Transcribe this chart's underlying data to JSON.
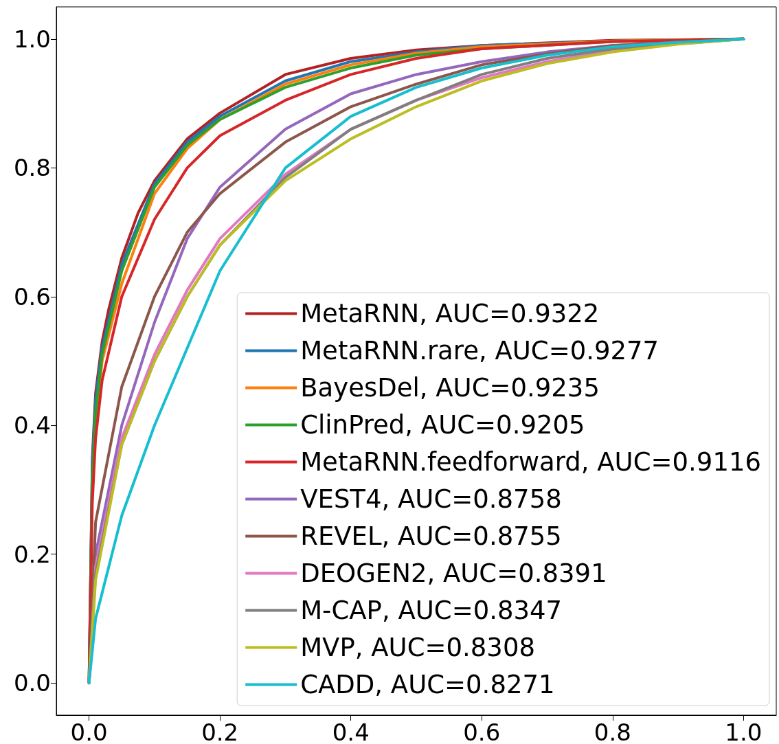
{
  "chart_data": {
    "type": "line",
    "xlim": [
      -0.05,
      1.05
    ],
    "ylim": [
      -0.05,
      1.05
    ],
    "xticks": [
      {
        "value": 0,
        "label": "0.0"
      },
      {
        "value": 0.2,
        "label": "0.2"
      },
      {
        "value": 0.4,
        "label": "0.4"
      },
      {
        "value": 0.6,
        "label": "0.6"
      },
      {
        "value": 0.8,
        "label": "0.8"
      },
      {
        "value": 1,
        "label": "1.0"
      }
    ],
    "yticks": [
      {
        "value": 0,
        "label": "0.0"
      },
      {
        "value": 0.2,
        "label": "0.2"
      },
      {
        "value": 0.4,
        "label": "0.4"
      },
      {
        "value": 0.6,
        "label": "0.6"
      },
      {
        "value": 0.8,
        "label": "0.8"
      },
      {
        "value": 1,
        "label": "1.0"
      }
    ],
    "grid": false,
    "legend": "bottom right",
    "marker": "none",
    "line_style": "solid",
    "series": [
      {
        "name": "MetaRNN, AUC=0.9322",
        "color": "#b22222",
        "x": [
          0,
          0.005,
          0.01,
          0.02,
          0.03,
          0.05,
          0.075,
          0.1,
          0.15,
          0.2,
          0.3,
          0.4,
          0.5,
          0.6,
          0.8,
          1
        ],
        "values": [
          0,
          0.35,
          0.45,
          0.53,
          0.58,
          0.66,
          0.73,
          0.78,
          0.845,
          0.885,
          0.945,
          0.97,
          0.983,
          0.99,
          0.998,
          1
        ]
      },
      {
        "name": "MetaRNN.rare, AUC=0.9277",
        "color": "#1f77b4",
        "x": [
          0,
          0.005,
          0.01,
          0.02,
          0.05,
          0.1,
          0.15,
          0.2,
          0.3,
          0.4,
          0.5,
          0.6,
          0.8,
          1
        ],
        "values": [
          0,
          0.34,
          0.44,
          0.52,
          0.65,
          0.775,
          0.84,
          0.88,
          0.935,
          0.965,
          0.98,
          0.99,
          0.997,
          1
        ]
      },
      {
        "name": "BayesDel, AUC=0.9235",
        "color": "#ff7f0e",
        "x": [
          0.01,
          0.02,
          0.05,
          0.1,
          0.15,
          0.2,
          0.3,
          0.4,
          0.5,
          0.6,
          0.8,
          1
        ],
        "values": [
          0.4,
          0.5,
          0.62,
          0.76,
          0.83,
          0.875,
          0.93,
          0.96,
          0.978,
          0.988,
          0.997,
          1
        ]
      },
      {
        "name": "ClinPred, AUC=0.9205",
        "color": "#2ca02c",
        "x": [
          0,
          0.005,
          0.01,
          0.02,
          0.05,
          0.1,
          0.15,
          0.2,
          0.3,
          0.4,
          0.5,
          0.6,
          0.8,
          1
        ],
        "values": [
          0,
          0.32,
          0.42,
          0.51,
          0.64,
          0.77,
          0.835,
          0.875,
          0.925,
          0.955,
          0.975,
          0.985,
          0.996,
          1
        ]
      },
      {
        "name": "MetaRNN.feedforward, AUC=0.9116",
        "color": "#d62728",
        "x": [
          0,
          0.005,
          0.01,
          0.02,
          0.05,
          0.1,
          0.15,
          0.2,
          0.3,
          0.4,
          0.5,
          0.6,
          0.8,
          1
        ],
        "values": [
          0,
          0.28,
          0.38,
          0.47,
          0.6,
          0.72,
          0.8,
          0.85,
          0.905,
          0.945,
          0.97,
          0.985,
          0.996,
          1
        ]
      },
      {
        "name": "VEST4, AUC=0.8758",
        "color": "#9467bd",
        "x": [
          0,
          0.01,
          0.05,
          0.1,
          0.15,
          0.2,
          0.3,
          0.4,
          0.5,
          0.6,
          0.7,
          0.8,
          1
        ],
        "values": [
          0,
          0.2,
          0.4,
          0.56,
          0.69,
          0.77,
          0.86,
          0.915,
          0.945,
          0.965,
          0.98,
          0.99,
          1
        ]
      },
      {
        "name": "REVEL, AUC=0.8755",
        "color": "#8c564b",
        "x": [
          0,
          0.01,
          0.05,
          0.1,
          0.15,
          0.2,
          0.3,
          0.4,
          0.5,
          0.6,
          0.7,
          0.8,
          1
        ],
        "values": [
          0,
          0.25,
          0.46,
          0.6,
          0.7,
          0.76,
          0.84,
          0.895,
          0.93,
          0.96,
          0.977,
          0.99,
          1
        ]
      },
      {
        "name": "DEOGEN2, AUC=0.8391",
        "color": "#e377c2",
        "x": [
          0,
          0.01,
          0.05,
          0.1,
          0.15,
          0.2,
          0.3,
          0.4,
          0.5,
          0.6,
          0.7,
          0.8,
          0.9,
          1
        ],
        "values": [
          0,
          0.18,
          0.38,
          0.51,
          0.61,
          0.69,
          0.79,
          0.86,
          0.905,
          0.94,
          0.965,
          0.982,
          0.993,
          1
        ]
      },
      {
        "name": "M-CAP, AUC=0.8347",
        "color": "#7f7f7f",
        "x": [
          0,
          0.01,
          0.05,
          0.1,
          0.15,
          0.2,
          0.3,
          0.4,
          0.5,
          0.6,
          0.7,
          0.8,
          1
        ],
        "values": [
          0,
          0.17,
          0.37,
          0.5,
          0.6,
          0.68,
          0.785,
          0.86,
          0.905,
          0.945,
          0.97,
          0.985,
          1
        ]
      },
      {
        "name": "MVP, AUC=0.8308",
        "color": "#bcbd22",
        "x": [
          0,
          0.01,
          0.05,
          0.1,
          0.15,
          0.2,
          0.3,
          0.4,
          0.5,
          0.6,
          0.7,
          0.8,
          0.9,
          1
        ],
        "values": [
          0,
          0.16,
          0.37,
          0.5,
          0.6,
          0.68,
          0.78,
          0.845,
          0.895,
          0.935,
          0.962,
          0.98,
          0.992,
          1
        ]
      },
      {
        "name": "CADD, AUC=0.8271",
        "color": "#17becf",
        "x": [
          0,
          0.01,
          0.05,
          0.1,
          0.15,
          0.2,
          0.3,
          0.4,
          0.5,
          0.6,
          0.7,
          0.8,
          0.9,
          1
        ],
        "values": [
          0,
          0.1,
          0.26,
          0.4,
          0.52,
          0.64,
          0.8,
          0.88,
          0.925,
          0.955,
          0.975,
          0.988,
          0.995,
          1
        ]
      }
    ]
  }
}
